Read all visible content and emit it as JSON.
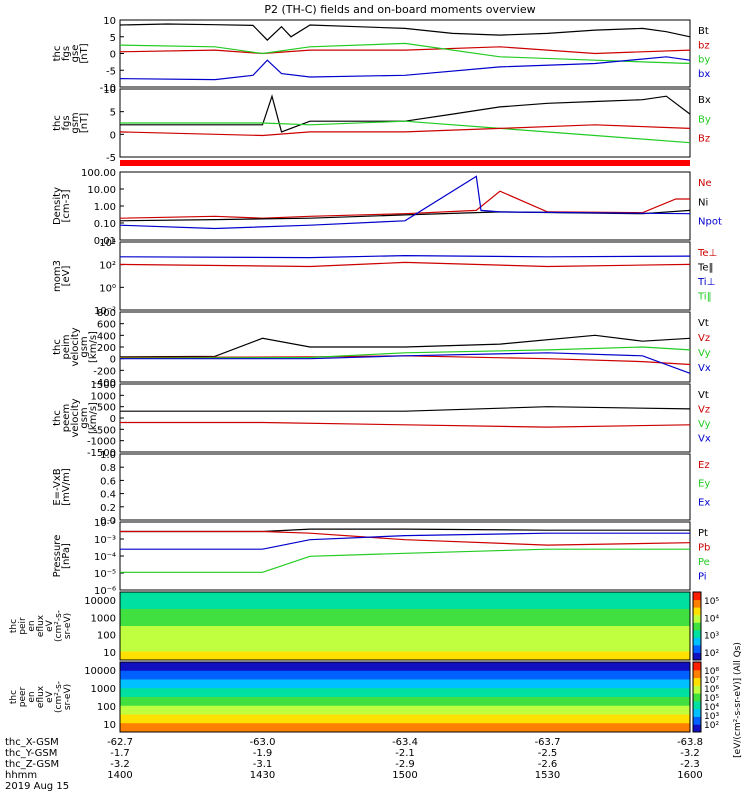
{
  "chart_data": {
    "type": "line",
    "title": "P2 (TH-C) fields and on-board moments overview",
    "panels": [
      {
        "id": "fgs_gse",
        "ylabel": [
          "thc",
          "fgs",
          "gse",
          "[nT]"
        ],
        "ylim": [
          -10,
          10
        ],
        "yticks": [
          "10",
          "5",
          "0",
          "-5",
          "-10"
        ],
        "scale": "linear",
        "legend": [
          {
            "name": "Bt",
            "color": "#000000"
          },
          {
            "name": "bz",
            "color": "#cc0000"
          },
          {
            "name": "by",
            "color": "#22cc22"
          },
          {
            "name": "bx",
            "color": "#0000cc"
          }
        ],
        "series": [
          {
            "name": "Bt",
            "x": [
              1400,
              1410,
              1420,
              1428,
              1431,
              1434,
              1436,
              1440,
              1450,
              1500,
              1510,
              1520,
              1530,
              1540,
              1550,
              1555,
              1600
            ],
            "y": [
              8.5,
              8.8,
              8.6,
              8.4,
              4,
              8,
              5,
              8.5,
              8,
              7.5,
              6,
              5.5,
              6,
              7,
              7.5,
              6.5,
              5
            ]
          },
          {
            "name": "bz",
            "x": [
              1400,
              1420,
              1430,
              1440,
              1500,
              1520,
              1540,
              1600
            ],
            "y": [
              0.5,
              1,
              0,
              1,
              1,
              2,
              0,
              1
            ]
          },
          {
            "name": "by",
            "x": [
              1400,
              1420,
              1430,
              1440,
              1500,
              1520,
              1540,
              1600
            ],
            "y": [
              2.5,
              2,
              0,
              2,
              3,
              -1,
              -2,
              -3
            ]
          },
          {
            "name": "bx",
            "x": [
              1400,
              1420,
              1428,
              1431,
              1434,
              1440,
              1500,
              1520,
              1540,
              1555,
              1600
            ],
            "y": [
              -7.5,
              -7.8,
              -6.5,
              -2,
              -6,
              -7,
              -6.5,
              -4,
              -3,
              -1,
              -2
            ]
          }
        ]
      },
      {
        "id": "fgs_gsm",
        "ylabel": [
          "thc",
          "fgs",
          "gsm",
          "[nT]"
        ],
        "ylim": [
          -7,
          12
        ],
        "yticks": [
          "10",
          "5",
          "0",
          "-5"
        ],
        "scale": "linear",
        "legend": [
          {
            "name": "Bx",
            "color": "#000000"
          },
          {
            "name": "By",
            "color": "#22cc22"
          },
          {
            "name": "Bz",
            "color": "#cc0000"
          }
        ],
        "series": [
          {
            "name": "Bx",
            "x": [
              1400,
              1430,
              1432,
              1434,
              1440,
              1500,
              1510,
              1520,
              1530,
              1540,
              1550,
              1555,
              1600
            ],
            "y": [
              2,
              2,
              10,
              0,
              3,
              3,
              5,
              7,
              8,
              8.5,
              9,
              10,
              5
            ]
          },
          {
            "name": "By",
            "x": [
              1400,
              1430,
              1440,
              1500,
              1520,
              1540,
              1600
            ],
            "y": [
              2.5,
              2.5,
              2,
              3,
              1,
              -1,
              -3
            ]
          },
          {
            "name": "Bz",
            "x": [
              1400,
              1430,
              1440,
              1500,
              1520,
              1540,
              1600
            ],
            "y": [
              0,
              -1,
              0,
              0,
              1,
              2,
              1
            ]
          }
        ]
      },
      {
        "id": "density",
        "ylabel": [
          "Density",
          "[cm-3]"
        ],
        "ylim": [
          0.005,
          200
        ],
        "yticks": [
          "100.00",
          "10.00",
          "1.00",
          "0.10",
          "0.01"
        ],
        "scale": "log",
        "legend": [
          {
            "name": "Ne",
            "color": "#cc0000"
          },
          {
            "name": "Ni",
            "color": "#000000"
          },
          {
            "name": "Npot",
            "color": "#0000cc"
          }
        ],
        "series": [
          {
            "name": "Ne",
            "x": [
              1400,
              1420,
              1430,
              1440,
              1500,
              1515,
              1520,
              1530,
              1550,
              1557,
              1600
            ],
            "y": [
              0.15,
              0.2,
              0.15,
              0.2,
              0.3,
              0.5,
              10,
              0.4,
              0.35,
              3,
              3
            ]
          },
          {
            "name": "Ni",
            "x": [
              1400,
              1420,
              1440,
              1500,
              1520,
              1550,
              1600
            ],
            "y": [
              0.1,
              0.12,
              0.15,
              0.25,
              0.4,
              0.3,
              0.5
            ]
          },
          {
            "name": "Npot",
            "x": [
              1400,
              1420,
              1440,
              1500,
              1515,
              1516,
              1520,
              1600
            ],
            "y": [
              0.05,
              0.03,
              0.05,
              0.1,
              100,
              0.5,
              0.4,
              0.3
            ]
          }
        ]
      },
      {
        "id": "moms_temp",
        "ylabel": [
          "mom3",
          "[eV]"
        ],
        "ylim": [
          0.01,
          100000
        ],
        "yticks": [
          "10⁴",
          "10²",
          "10⁰",
          "10⁻²"
        ],
        "scale": "log",
        "legend": [
          {
            "name": "Te⊥",
            "color": "#cc0000"
          },
          {
            "name": "Te‖",
            "color": "#000000"
          },
          {
            "name": "Ti⊥",
            "color": "#0000cc"
          },
          {
            "name": "Ti‖",
            "color": "#22cc22"
          }
        ],
        "series": [
          {
            "name": "Te⊥",
            "x": [
              1400,
              1440,
              1500,
              1530,
              1600
            ],
            "y": [
              500,
              300,
              800,
              300,
              500
            ]
          },
          {
            "name": "Ti⊥",
            "x": [
              1400,
              1440,
              1500,
              1530,
              1600
            ],
            "y": [
              3000,
              2500,
              4000,
              3000,
              3500
            ]
          }
        ]
      },
      {
        "id": "peim_velocity",
        "ylabel": [
          "thc",
          "peim",
          "velocity",
          "gsm",
          "[km/s]"
        ],
        "ylim": [
          -400,
          800
        ],
        "yticks": [
          "800",
          "600",
          "400",
          "200",
          "0",
          "-200",
          "-400"
        ],
        "scale": "linear",
        "legend": [
          {
            "name": "Vt",
            "color": "#000000"
          },
          {
            "name": "Vz",
            "color": "#cc0000"
          },
          {
            "name": "Vy",
            "color": "#22cc22"
          },
          {
            "name": "Vx",
            "color": "#0000cc"
          }
        ],
        "series": [
          {
            "name": "Vt",
            "x": [
              1400,
              1420,
              1430,
              1440,
              1500,
              1520,
              1540,
              1550,
              1600
            ],
            "y": [
              30,
              40,
              350,
              200,
              200,
              250,
              400,
              300,
              350
            ]
          },
          {
            "name": "Vz",
            "x": [
              1400,
              1440,
              1500,
              1530,
              1550,
              1600
            ],
            "y": [
              20,
              30,
              50,
              0,
              -50,
              -100
            ]
          },
          {
            "name": "Vy",
            "x": [
              1400,
              1440,
              1500,
              1530,
              1550,
              1600
            ],
            "y": [
              10,
              20,
              100,
              150,
              200,
              150
            ]
          },
          {
            "name": "Vx",
            "x": [
              1400,
              1440,
              1500,
              1530,
              1550,
              1600
            ],
            "y": [
              0,
              0,
              50,
              100,
              50,
              -250
            ]
          }
        ]
      },
      {
        "id": "peem_velocity",
        "ylabel": [
          "thc",
          "peem",
          "velocity",
          "gsm",
          "[km/s]"
        ],
        "ylim": [
          -1500,
          1500
        ],
        "yticks": [
          "1500",
          "1000",
          "500",
          "0",
          "-500",
          "-1000",
          "-1500"
        ],
        "scale": "linear",
        "legend": [
          {
            "name": "Vt",
            "color": "#000000"
          },
          {
            "name": "Vz",
            "color": "#cc0000"
          },
          {
            "name": "Vy",
            "color": "#22cc22"
          },
          {
            "name": "Vx",
            "color": "#0000cc"
          }
        ],
        "series": [
          {
            "name": "Vt",
            "x": [
              1400,
              1430,
              1500,
              1530,
              1600
            ],
            "y": [
              300,
              300,
              300,
              500,
              400
            ]
          },
          {
            "name": "Vz",
            "x": [
              1400,
              1430,
              1500,
              1530,
              1600
            ],
            "y": [
              -200,
              -200,
              -300,
              -400,
              -300
            ]
          }
        ]
      },
      {
        "id": "efield",
        "ylabel": [
          "E=-VxB",
          "[mV/m]"
        ],
        "ylim": [
          0,
          1
        ],
        "yticks": [
          "1.0",
          "0.8",
          "0.6",
          "0.4",
          "0.2",
          "0.0"
        ],
        "scale": "linear",
        "legend": [
          {
            "name": "Ez",
            "color": "#cc0000"
          },
          {
            "name": "Ey",
            "color": "#22cc22"
          },
          {
            "name": "Ex",
            "color": "#0000cc"
          }
        ],
        "series": []
      },
      {
        "id": "pressure",
        "ylabel": [
          "Pressure",
          "[nPa]"
        ],
        "ylim": [
          1e-06,
          0.1
        ],
        "yticks": [
          "10⁻²",
          "10⁻³",
          "10⁻⁴",
          "10⁻⁵",
          "10⁻⁶"
        ],
        "scale": "log",
        "legend": [
          {
            "name": "Pt",
            "color": "#000000"
          },
          {
            "name": "Pb",
            "color": "#cc0000"
          },
          {
            "name": "Pe",
            "color": "#22cc22"
          },
          {
            "name": "Pi",
            "color": "#0000cc"
          }
        ],
        "series": [
          {
            "name": "Pt",
            "x": [
              1400,
              1430,
              1440,
              1500,
              1530,
              1600
            ],
            "y": [
              0.02,
              0.02,
              0.03,
              0.03,
              0.025,
              0.025
            ]
          },
          {
            "name": "Pb",
            "x": [
              1400,
              1430,
              1440,
              1500,
              1530,
              1600
            ],
            "y": [
              0.02,
              0.02,
              0.015,
              0.005,
              0.002,
              0.003
            ]
          },
          {
            "name": "Pe",
            "x": [
              1400,
              1430,
              1440,
              1500,
              1530,
              1600
            ],
            "y": [
              2e-05,
              2e-05,
              0.0003,
              0.0005,
              0.001,
              0.001
            ]
          },
          {
            "name": "Pi",
            "x": [
              1400,
              1430,
              1440,
              1500,
              1530,
              1600
            ],
            "y": [
              0.001,
              0.001,
              0.005,
              0.01,
              0.015,
              0.015
            ]
          }
        ]
      }
    ],
    "spectrograms": [
      {
        "id": "peir",
        "ylabel": [
          "thc",
          "peir",
          "en",
          "eflux",
          "eV",
          "(cm²-s-",
          "sr-eV)"
        ],
        "yticks": [
          "10000",
          "1000",
          "100",
          "10"
        ],
        "ylim": [
          5,
          20000
        ],
        "scale": "log",
        "colorbar_ticks": [
          "10⁵",
          "10⁴",
          "10³",
          "10²"
        ]
      },
      {
        "id": "peer",
        "ylabel": [
          "thc",
          "peer",
          "en",
          "eflux",
          "eV",
          "(cm²-s-",
          "sr-eV)"
        ],
        "yticks": [
          "10000",
          "1000",
          "100",
          "10"
        ],
        "ylim": [
          5,
          20000
        ],
        "scale": "log",
        "colorbar_ticks": [
          "10⁸",
          "10⁷",
          "10⁶",
          "10⁵",
          "10⁴",
          "10³",
          "10²"
        ]
      }
    ],
    "colorbar_label": "[eV/(cm²-s-sr-eV)] (All Qs)",
    "xaxis": {
      "rows": [
        {
          "label": "thc_X-GSM",
          "values": [
            "-62.7",
            "-63.0",
            "-63.4",
            "-63.7",
            "-63.8"
          ]
        },
        {
          "label": "thc_Y-GSM",
          "values": [
            "-1.7",
            "-1.9",
            "-2.1",
            "-2.5",
            "-3.2"
          ]
        },
        {
          "label": "thc_Z-GSM",
          "values": [
            "-3.2",
            "-3.1",
            "-2.9",
            "-2.6",
            "-2.3"
          ]
        },
        {
          "label": "hhmm",
          "values": [
            "1400",
            "1430",
            "1500",
            "1530",
            "1600"
          ]
        }
      ],
      "date": "2019 Aug 15",
      "range": [
        1400,
        1600
      ]
    }
  }
}
